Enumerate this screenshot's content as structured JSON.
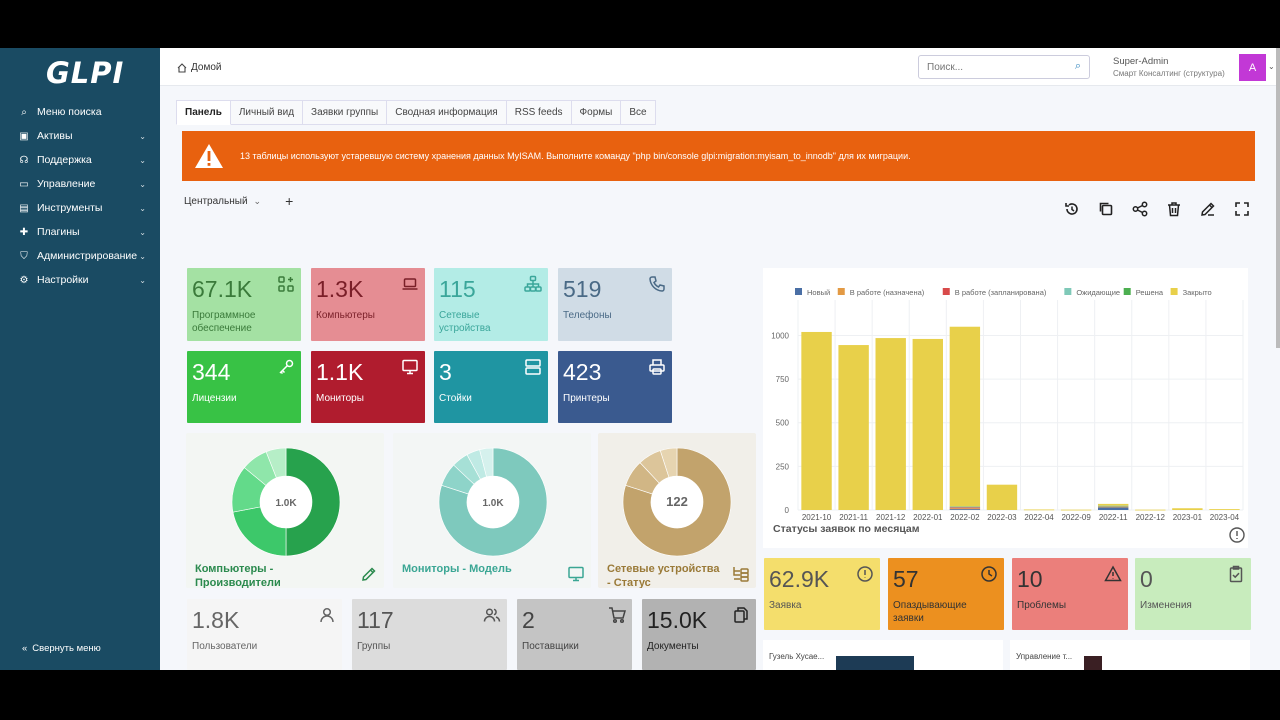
{
  "sidebar": {
    "logo": "GLPI",
    "items": [
      {
        "label": "Меню поиска",
        "icon": "search-icon",
        "chevron": false
      },
      {
        "label": "Активы",
        "icon": "box-icon",
        "chevron": true
      },
      {
        "label": "Поддержка",
        "icon": "headset-icon",
        "chevron": true
      },
      {
        "label": "Управление",
        "icon": "wallet-icon",
        "chevron": true
      },
      {
        "label": "Инструменты",
        "icon": "briefcase-icon",
        "chevron": true
      },
      {
        "label": "Плагины",
        "icon": "puzzle-icon",
        "chevron": true
      },
      {
        "label": "Администрирование",
        "icon": "shield-icon",
        "chevron": true
      },
      {
        "label": "Настройки",
        "icon": "gear-icon",
        "chevron": true
      }
    ],
    "collapse_label": "Свернуть меню"
  },
  "topbar": {
    "breadcrumb": "Домой",
    "search_placeholder": "Поиск...",
    "user_name": "Super-Admin",
    "user_entity": "Смарт Консалтинг (структура)",
    "avatar_letter": "A"
  },
  "tabs": [
    "Панель",
    "Личный вид",
    "Заявки группы",
    "Сводная информация",
    "RSS feeds",
    "Формы",
    "Все"
  ],
  "alert": {
    "text": "13 таблицы используют устаревшую систему хранения данных MyISAM. Выполните команду \"php bin/console glpi:migration:myisam_to_innodb\" для их миграции."
  },
  "dashboard": {
    "selected": "Центральный",
    "add_label": "+"
  },
  "tiles": [
    {
      "value": "67.1K",
      "label": "Программное обеспечение",
      "icon": "apps-icon",
      "bg": "#a4e1a3",
      "fg": "#3a7a3a"
    },
    {
      "value": "1.3K",
      "label": "Компьютеры",
      "icon": "laptop-icon",
      "bg": "#e58d93",
      "fg": "#7a1f28"
    },
    {
      "value": "115",
      "label": "Сетевые устройства",
      "icon": "network-icon",
      "bg": "#b3ece6",
      "fg": "#3aa69a"
    },
    {
      "value": "519",
      "label": "Телефоны",
      "icon": "phone-icon",
      "bg": "#d0dce6",
      "fg": "#4a6a86"
    },
    {
      "value": "344",
      "label": "Лицензии",
      "icon": "key-icon",
      "bg": "#38c245",
      "fg": "#ffffff"
    },
    {
      "value": "1.1K",
      "label": "Мониторы",
      "icon": "monitor-icon",
      "bg": "#b01c2e",
      "fg": "#ffffff"
    },
    {
      "value": "3",
      "label": "Стойки",
      "icon": "server-icon",
      "bg": "#1f95a2",
      "fg": "#ffffff"
    },
    {
      "value": "423",
      "label": "Принтеры",
      "icon": "printer-icon",
      "bg": "#3a5a8f",
      "fg": "#ffffff"
    },
    {
      "value": "1.8K",
      "label": "Пользователи",
      "icon": "user-icon",
      "bg": "#f5f5f5",
      "fg": "#666666"
    },
    {
      "value": "117",
      "label": "Группы",
      "icon": "users-icon",
      "bg": "#dcdcdc",
      "fg": "#555555"
    },
    {
      "value": "2",
      "label": "Поставщики",
      "icon": "cart-icon",
      "bg": "#c4c4c4",
      "fg": "#444444"
    },
    {
      "value": "15.0K",
      "label": "Документы",
      "icon": "files-icon",
      "bg": "#b2b2b2",
      "fg": "#222222"
    },
    {
      "value": "62.9K",
      "label": "Заявка",
      "icon": "alert-circle-icon",
      "bg": "#f4de6c",
      "fg": "#555555"
    },
    {
      "value": "57",
      "label": "Опаздывающие заявки",
      "icon": "clock-icon",
      "bg": "#ec901f",
      "fg": "#333333"
    },
    {
      "value": "10",
      "label": "Проблемы",
      "icon": "triangle-alert-icon",
      "bg": "#eb7f7b",
      "fg": "#333333"
    },
    {
      "value": "0",
      "label": "Изменения",
      "icon": "clipboard-check-icon",
      "bg": "#c8ecbd",
      "fg": "#555555"
    }
  ],
  "donuts": [
    {
      "center": "1.0K",
      "label": "Компьютеры - Производители",
      "icon": "edit-icon",
      "bg": "#f3f6f3",
      "label_color": "#2b8a4e",
      "colors": [
        "#27a24d",
        "#3dc86a",
        "#63da8a",
        "#8fe6aa",
        "#b6eec7"
      ],
      "values": [
        50,
        22,
        14,
        8,
        6
      ]
    },
    {
      "center": "1.0K",
      "label": "Мониторы - Модель",
      "icon": "desktop-icon",
      "bg": "#f3f6f5",
      "label_color": "#3aa694",
      "colors": [
        "#7ec9bd",
        "#8ed4c9",
        "#a6e0d6",
        "#bfeae4",
        "#d5f1ed"
      ],
      "values": [
        80,
        7,
        5,
        4,
        4
      ]
    },
    {
      "center": "122",
      "label": "Сетевые устройства - Статус",
      "icon": "sitemap-icon",
      "bg": "#f1efe9",
      "label_color": "#9a7a38",
      "colors": [
        "#c2a36c",
        "#d1b685",
        "#dcc59a",
        "#e6d4b0"
      ],
      "values": [
        80,
        8,
        7,
        5
      ]
    }
  ],
  "chart_data": {
    "type": "bar",
    "title": "Статусы заявок по месяцам",
    "categories": [
      "2021-10",
      "2021-11",
      "2021-12",
      "2022-01",
      "2022-02",
      "2022-03",
      "2022-04",
      "2022-09",
      "2022-11",
      "2022-12",
      "2023-01",
      "2023-04"
    ],
    "series": [
      {
        "name": "Новый",
        "color": "#4a6fa5",
        "values": [
          0,
          0,
          0,
          0,
          5,
          0,
          0,
          0,
          15,
          0,
          0,
          0
        ]
      },
      {
        "name": "В работе (назначена)",
        "color": "#e39a44",
        "values": [
          0,
          0,
          0,
          0,
          5,
          0,
          0,
          0,
          5,
          0,
          0,
          0
        ]
      },
      {
        "name": "В работе (запланирована)",
        "color": "#d84a4a",
        "values": [
          0,
          0,
          0,
          0,
          5,
          0,
          0,
          0,
          0,
          0,
          0,
          0
        ]
      },
      {
        "name": "Ожидающие",
        "color": "#7fc9b8",
        "values": [
          0,
          0,
          0,
          0,
          5,
          0,
          0,
          0,
          5,
          0,
          0,
          0
        ]
      },
      {
        "name": "Решена",
        "color": "#4caf50",
        "values": [
          0,
          0,
          0,
          0,
          0,
          0,
          0,
          0,
          0,
          0,
          0,
          0
        ]
      },
      {
        "name": "Закрыто",
        "color": "#e8d04a",
        "values": [
          1020,
          945,
          985,
          980,
          1030,
          145,
          3,
          2,
          10,
          2,
          10,
          5
        ]
      }
    ],
    "yticks": [
      0,
      250,
      500,
      750,
      1000
    ],
    "ylim": [
      0,
      1100
    ],
    "legend_position": "top",
    "grid": true
  },
  "widget_bottom": {
    "left_label": "Гузель Хусае...",
    "right_label": "Управление т..."
  }
}
